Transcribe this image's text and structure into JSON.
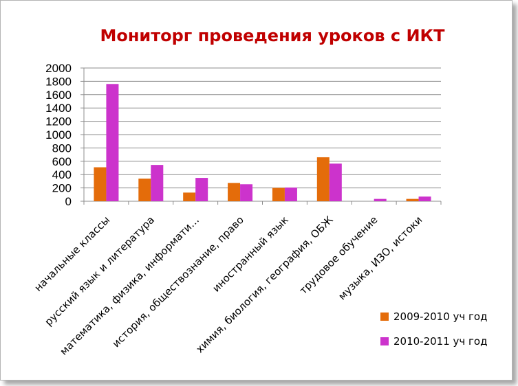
{
  "chart_data": {
    "type": "bar",
    "title": "Мониторг проведения уроков с ИКТ",
    "categories": [
      "начальные классы",
      "русский язык и литература",
      "математика, физика, информати…",
      "история, обществознание, право",
      "иностранный язык",
      "химия, биология, география, ОБЖ",
      "трудовое обучение",
      "музыка,  ИЗО, истоки"
    ],
    "series": [
      {
        "name": "2009-2010 уч год",
        "color": "#e46c0a",
        "values": [
          510,
          340,
          130,
          275,
          200,
          660,
          0,
          35
        ]
      },
      {
        "name": "2010-2011 уч год",
        "color": "#cc33cc",
        "values": [
          1760,
          545,
          350,
          255,
          205,
          565,
          35,
          70
        ]
      }
    ],
    "ylim": [
      0,
      2000
    ],
    "yticks": [
      0,
      200,
      400,
      600,
      800,
      1000,
      1200,
      1400,
      1600,
      1800,
      2000
    ],
    "grid": true,
    "legend_position": "bottom-right",
    "title_color": "#c00000"
  }
}
